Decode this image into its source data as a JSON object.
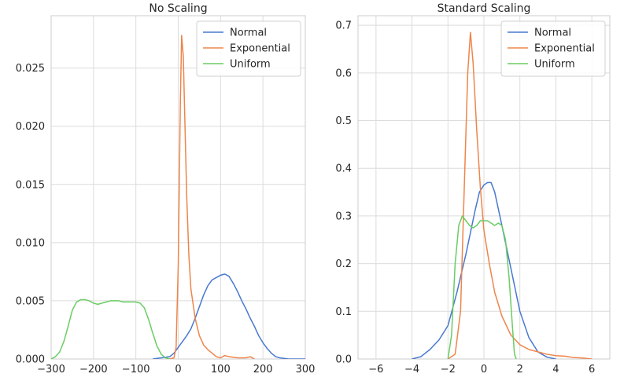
{
  "chart_data": [
    {
      "type": "line",
      "title": "No Scaling",
      "xlabel": "",
      "ylabel": "",
      "xlim": [
        -300,
        300
      ],
      "ylim": [
        0,
        0.0295
      ],
      "x_ticks": [
        -300,
        -200,
        -100,
        0,
        100,
        200,
        300
      ],
      "x_tick_labels": [
        "−300",
        "−200",
        "−100",
        "0",
        "100",
        "200",
        "300"
      ],
      "y_ticks": [
        0,
        0.005,
        0.01,
        0.015,
        0.02,
        0.025
      ],
      "y_tick_labels": [
        "0.000",
        "0.005",
        "0.010",
        "0.015",
        "0.020",
        "0.025"
      ],
      "grid": true,
      "legend_position": "top-right",
      "series": [
        {
          "name": "Normal",
          "color": "#4878d0",
          "points": [
            [
              -60,
              0
            ],
            [
              -40,
              0.0001
            ],
            [
              -20,
              0.0002
            ],
            [
              -10,
              0.0005
            ],
            [
              0,
              0.001
            ],
            [
              10,
              0.0015
            ],
            [
              20,
              0.002
            ],
            [
              30,
              0.0026
            ],
            [
              40,
              0.0035
            ],
            [
              50,
              0.0045
            ],
            [
              60,
              0.0055
            ],
            [
              70,
              0.0063
            ],
            [
              80,
              0.0068
            ],
            [
              90,
              0.007
            ],
            [
              100,
              0.0072
            ],
            [
              110,
              0.0073
            ],
            [
              120,
              0.0071
            ],
            [
              130,
              0.0065
            ],
            [
              140,
              0.0058
            ],
            [
              150,
              0.005
            ],
            [
              160,
              0.0043
            ],
            [
              170,
              0.0035
            ],
            [
              180,
              0.0028
            ],
            [
              190,
              0.002
            ],
            [
              200,
              0.0014
            ],
            [
              210,
              0.0009
            ],
            [
              220,
              0.0005
            ],
            [
              230,
              0.0002
            ],
            [
              240,
              0.0001
            ],
            [
              260,
              0
            ],
            [
              300,
              0
            ]
          ]
        },
        {
          "name": "Exponential",
          "color": "#ee854a",
          "points": [
            [
              -20,
              0
            ],
            [
              -10,
              0.0001
            ],
            [
              -5,
              0.001
            ],
            [
              0,
              0.008
            ],
            [
              5,
              0.022
            ],
            [
              8,
              0.0278
            ],
            [
              12,
              0.026
            ],
            [
              16,
              0.02
            ],
            [
              20,
              0.014
            ],
            [
              25,
              0.009
            ],
            [
              30,
              0.006
            ],
            [
              40,
              0.0035
            ],
            [
              50,
              0.002
            ],
            [
              60,
              0.0012
            ],
            [
              70,
              0.0008
            ],
            [
              80,
              0.0005
            ],
            [
              90,
              0.0002
            ],
            [
              100,
              0.0001
            ],
            [
              110,
              0.0003
            ],
            [
              120,
              0.0002
            ],
            [
              130,
              0.00015
            ],
            [
              140,
              0.0001
            ],
            [
              160,
              0.0001
            ],
            [
              170,
              0.0002
            ],
            [
              180,
              0
            ]
          ]
        },
        {
          "name": "Uniform",
          "color": "#6acc64",
          "points": [
            [
              -300,
              0
            ],
            [
              -290,
              0.0002
            ],
            [
              -280,
              0.0006
            ],
            [
              -270,
              0.0015
            ],
            [
              -260,
              0.0028
            ],
            [
              -250,
              0.0042
            ],
            [
              -240,
              0.0049
            ],
            [
              -230,
              0.0051
            ],
            [
              -220,
              0.0051
            ],
            [
              -210,
              0.005
            ],
            [
              -200,
              0.0048
            ],
            [
              -190,
              0.0047
            ],
            [
              -180,
              0.0048
            ],
            [
              -170,
              0.0049
            ],
            [
              -160,
              0.005
            ],
            [
              -150,
              0.005
            ],
            [
              -140,
              0.005
            ],
            [
              -130,
              0.0049
            ],
            [
              -120,
              0.0049
            ],
            [
              -110,
              0.0049
            ],
            [
              -100,
              0.0049
            ],
            [
              -90,
              0.0048
            ],
            [
              -80,
              0.0044
            ],
            [
              -70,
              0.0034
            ],
            [
              -60,
              0.0022
            ],
            [
              -50,
              0.0011
            ],
            [
              -40,
              0.0004
            ],
            [
              -30,
              0.0001
            ],
            [
              -20,
              0
            ]
          ]
        }
      ]
    },
    {
      "type": "line",
      "title": "Standard Scaling",
      "xlabel": "",
      "ylabel": "",
      "xlim": [
        -7,
        7
      ],
      "ylim": [
        0,
        0.72
      ],
      "x_ticks": [
        -6,
        -4,
        -2,
        0,
        2,
        4,
        6
      ],
      "x_tick_labels": [
        "−6",
        "−4",
        "−2",
        "0",
        "2",
        "4",
        "6"
      ],
      "y_ticks": [
        0,
        0.1,
        0.2,
        0.3,
        0.4,
        0.5,
        0.6,
        0.7
      ],
      "y_tick_labels": [
        "0.0",
        "0.1",
        "0.2",
        "0.3",
        "0.4",
        "0.5",
        "0.6",
        "0.7"
      ],
      "grid": true,
      "legend_position": "top-right",
      "series": [
        {
          "name": "Normal",
          "color": "#4878d0",
          "points": [
            [
              -4,
              0
            ],
            [
              -3.5,
              0.005
            ],
            [
              -3,
              0.02
            ],
            [
              -2.5,
              0.04
            ],
            [
              -2,
              0.07
            ],
            [
              -1.5,
              0.14
            ],
            [
              -1,
              0.22
            ],
            [
              -0.5,
              0.31
            ],
            [
              -0.25,
              0.35
            ],
            [
              0,
              0.365
            ],
            [
              0.2,
              0.37
            ],
            [
              0.4,
              0.37
            ],
            [
              0.6,
              0.35
            ],
            [
              1,
              0.28
            ],
            [
              1.5,
              0.19
            ],
            [
              2,
              0.1
            ],
            [
              2.5,
              0.045
            ],
            [
              3,
              0.015
            ],
            [
              3.5,
              0.004
            ],
            [
              4,
              0
            ]
          ]
        },
        {
          "name": "Exponential",
          "color": "#ee854a",
          "points": [
            [
              -2,
              0
            ],
            [
              -1.6,
              0.01
            ],
            [
              -1.3,
              0.1
            ],
            [
              -1.1,
              0.35
            ],
            [
              -0.9,
              0.6
            ],
            [
              -0.75,
              0.685
            ],
            [
              -0.6,
              0.62
            ],
            [
              -0.4,
              0.48
            ],
            [
              -0.2,
              0.36
            ],
            [
              0,
              0.27
            ],
            [
              0.3,
              0.2
            ],
            [
              0.6,
              0.14
            ],
            [
              1,
              0.09
            ],
            [
              1.5,
              0.05
            ],
            [
              2,
              0.03
            ],
            [
              2.5,
              0.02
            ],
            [
              3,
              0.015
            ],
            [
              3.5,
              0.01
            ],
            [
              4,
              0.007
            ],
            [
              4.5,
              0.006
            ],
            [
              5,
              0.003
            ],
            [
              5.5,
              0.002
            ],
            [
              6,
              0
            ]
          ]
        },
        {
          "name": "Uniform",
          "color": "#6acc64",
          "points": [
            [
              -2,
              0
            ],
            [
              -1.8,
              0.05
            ],
            [
              -1.6,
              0.2
            ],
            [
              -1.4,
              0.28
            ],
            [
              -1.2,
              0.3
            ],
            [
              -1,
              0.29
            ],
            [
              -0.8,
              0.28
            ],
            [
              -0.6,
              0.275
            ],
            [
              -0.4,
              0.28
            ],
            [
              -0.2,
              0.29
            ],
            [
              0,
              0.29
            ],
            [
              0.2,
              0.29
            ],
            [
              0.4,
              0.285
            ],
            [
              0.6,
              0.28
            ],
            [
              0.8,
              0.285
            ],
            [
              1,
              0.28
            ],
            [
              1.2,
              0.25
            ],
            [
              1.4,
              0.17
            ],
            [
              1.6,
              0.06
            ],
            [
              1.7,
              0.01
            ],
            [
              1.8,
              0
            ]
          ]
        }
      ]
    }
  ]
}
